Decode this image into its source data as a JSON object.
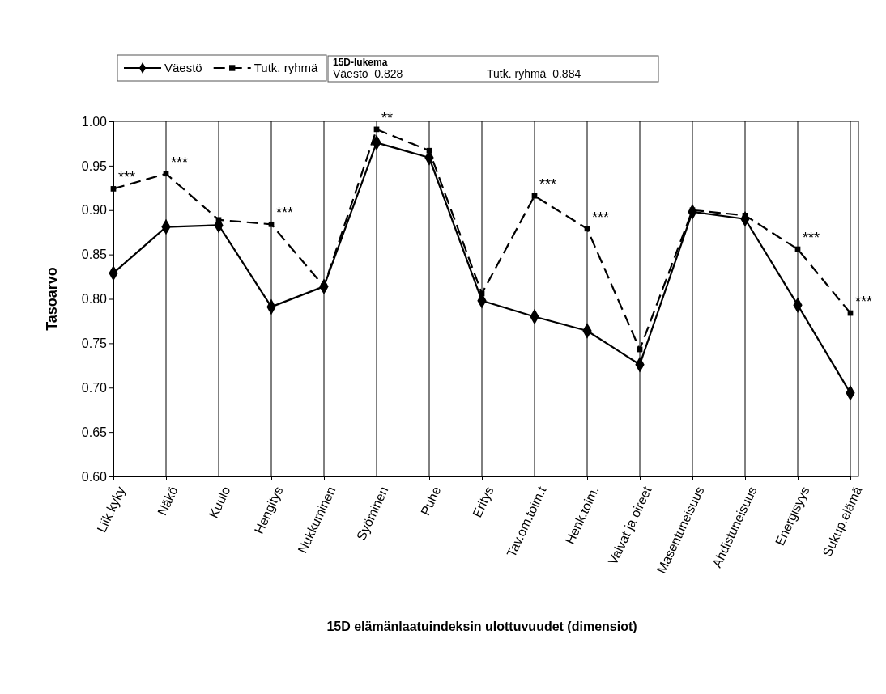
{
  "chart_data": {
    "type": "line",
    "xlabel": "15D elämänlaatuindeksin ulottuvuudet (dimensiot)",
    "ylabel": "Tasoarvo",
    "categories": [
      "Liik.kyky",
      "Näkö",
      "Kuulo",
      "Hengitys",
      "Nukkuminen",
      "Syöminen",
      "Puhe",
      "Eritys",
      "Tav.om.toim.t",
      "Henk.toim.",
      "Vaivat ja oireet",
      "Masentuneisuus",
      "Ahdistuneisuus",
      "Energisyys",
      "Sukup.elämä"
    ],
    "series": [
      {
        "name": "Väestö",
        "color": "#000000",
        "marker": "diamond",
        "line_style": "solid",
        "values": [
          0.829,
          0.881,
          0.883,
          0.791,
          0.814,
          0.976,
          0.959,
          0.798,
          0.78,
          0.764,
          0.726,
          0.898,
          0.89,
          0.793,
          0.694
        ]
      },
      {
        "name": "Tutk. ryhmä",
        "color": "#000000",
        "marker": "square",
        "line_style": "dashed",
        "values": [
          0.924,
          0.941,
          0.889,
          0.884,
          0.814,
          0.991,
          0.967,
          0.806,
          0.916,
          0.879,
          0.743,
          0.9,
          0.894,
          0.856,
          0.784
        ]
      }
    ],
    "ylim": [
      0.6,
      1.0
    ],
    "yticks": [
      {
        "value": 0.6,
        "label": "0.60"
      },
      {
        "value": 0.65,
        "label": "0.65"
      },
      {
        "value": 0.7,
        "label": "0.70"
      },
      {
        "value": 0.75,
        "label": "0.75"
      },
      {
        "value": 0.8,
        "label": "0.80"
      },
      {
        "value": 0.85,
        "label": "0.85"
      },
      {
        "value": 0.9,
        "label": "0.90"
      },
      {
        "value": 0.95,
        "label": "0.95"
      },
      {
        "value": 1.0,
        "label": "1.00"
      }
    ],
    "grid": "x",
    "legend": "top left",
    "annotations": [
      "15D-lukema",
      "Väestö  0.828",
      "Tutk. ryhmä  0.884",
      {
        "text": "***",
        "x": "Liik.kyky",
        "y": 0.924
      },
      {
        "text": "***",
        "x": "Näkö",
        "y": 0.941
      },
      {
        "text": "***",
        "x": "Hengitys",
        "y": 0.884
      },
      {
        "text": "**",
        "x": "Syöminen",
        "y": 0.991
      },
      {
        "text": "***",
        "x": "Tav.om.toim.t",
        "y": 0.916
      },
      {
        "text": "***",
        "x": "Henk.toim.",
        "y": 0.879
      },
      {
        "text": "***",
        "x": "Energisyys",
        "y": 0.856
      },
      {
        "text": "***",
        "x": "Sukup.elämä",
        "y": 0.784
      }
    ]
  }
}
